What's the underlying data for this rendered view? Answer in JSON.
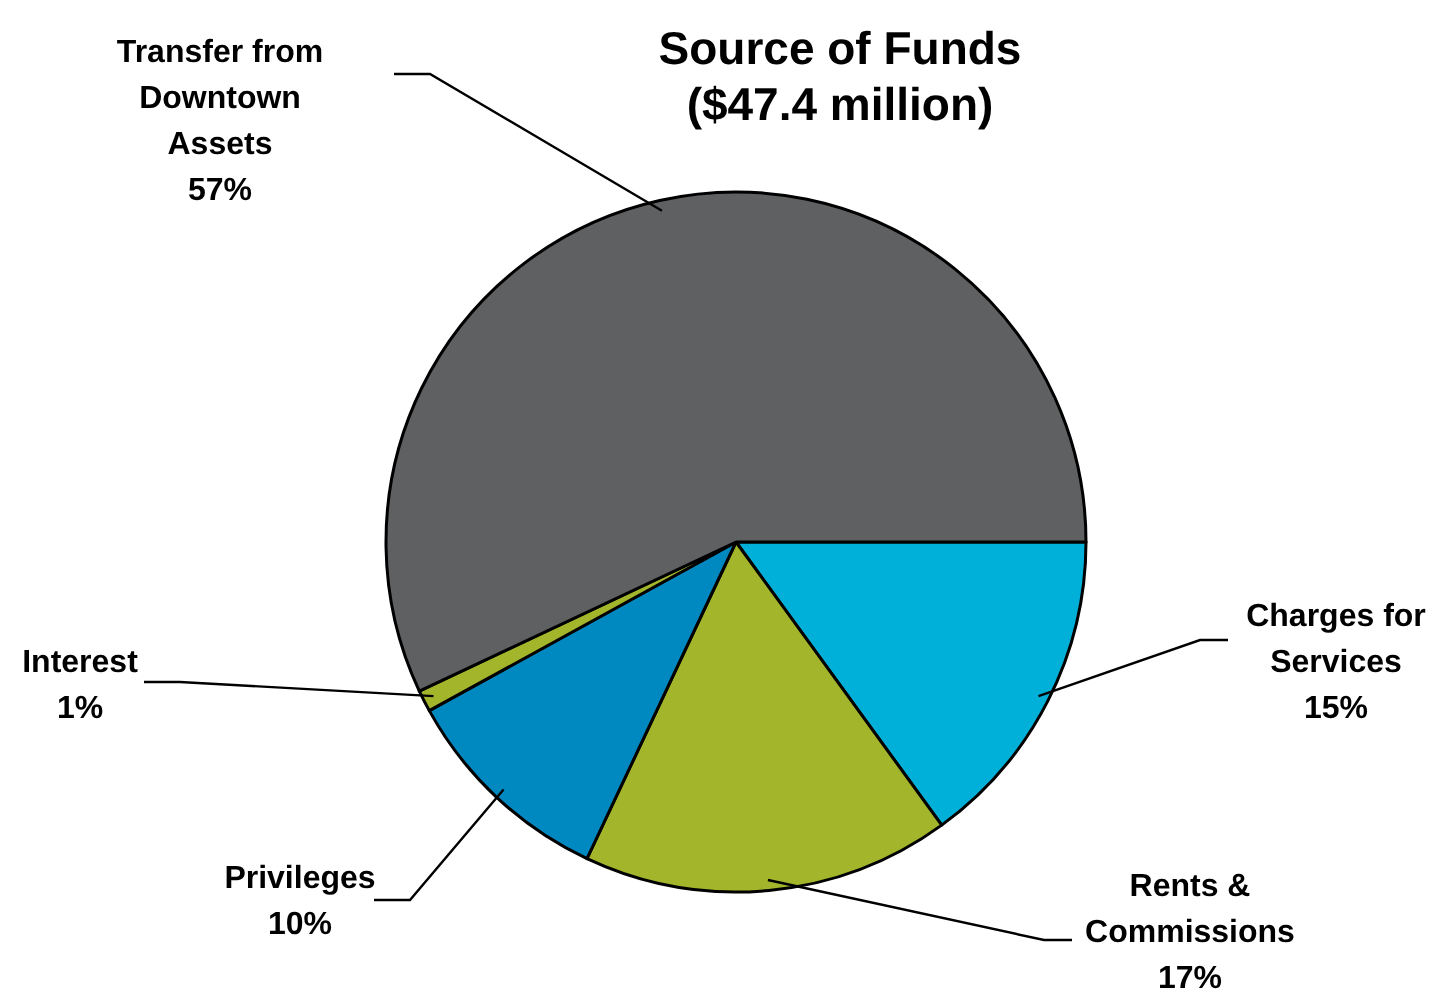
{
  "chart_data": {
    "type": "pie",
    "title": "Source of Funds",
    "subtitle": "($47.4 million)",
    "categories": [
      "Charges for Services",
      "Rents & Commissions",
      "Privileges",
      "Interest",
      "Transfer from Downtown Assets"
    ],
    "values": [
      15,
      17,
      10,
      1,
      57
    ],
    "value_labels": [
      "15%",
      "17%",
      "10%",
      "1%",
      "57%"
    ],
    "colors": [
      "#00b0d8",
      "#a3b52a",
      "#0088c0",
      "#a3b52a",
      "#5f6062"
    ]
  }
}
